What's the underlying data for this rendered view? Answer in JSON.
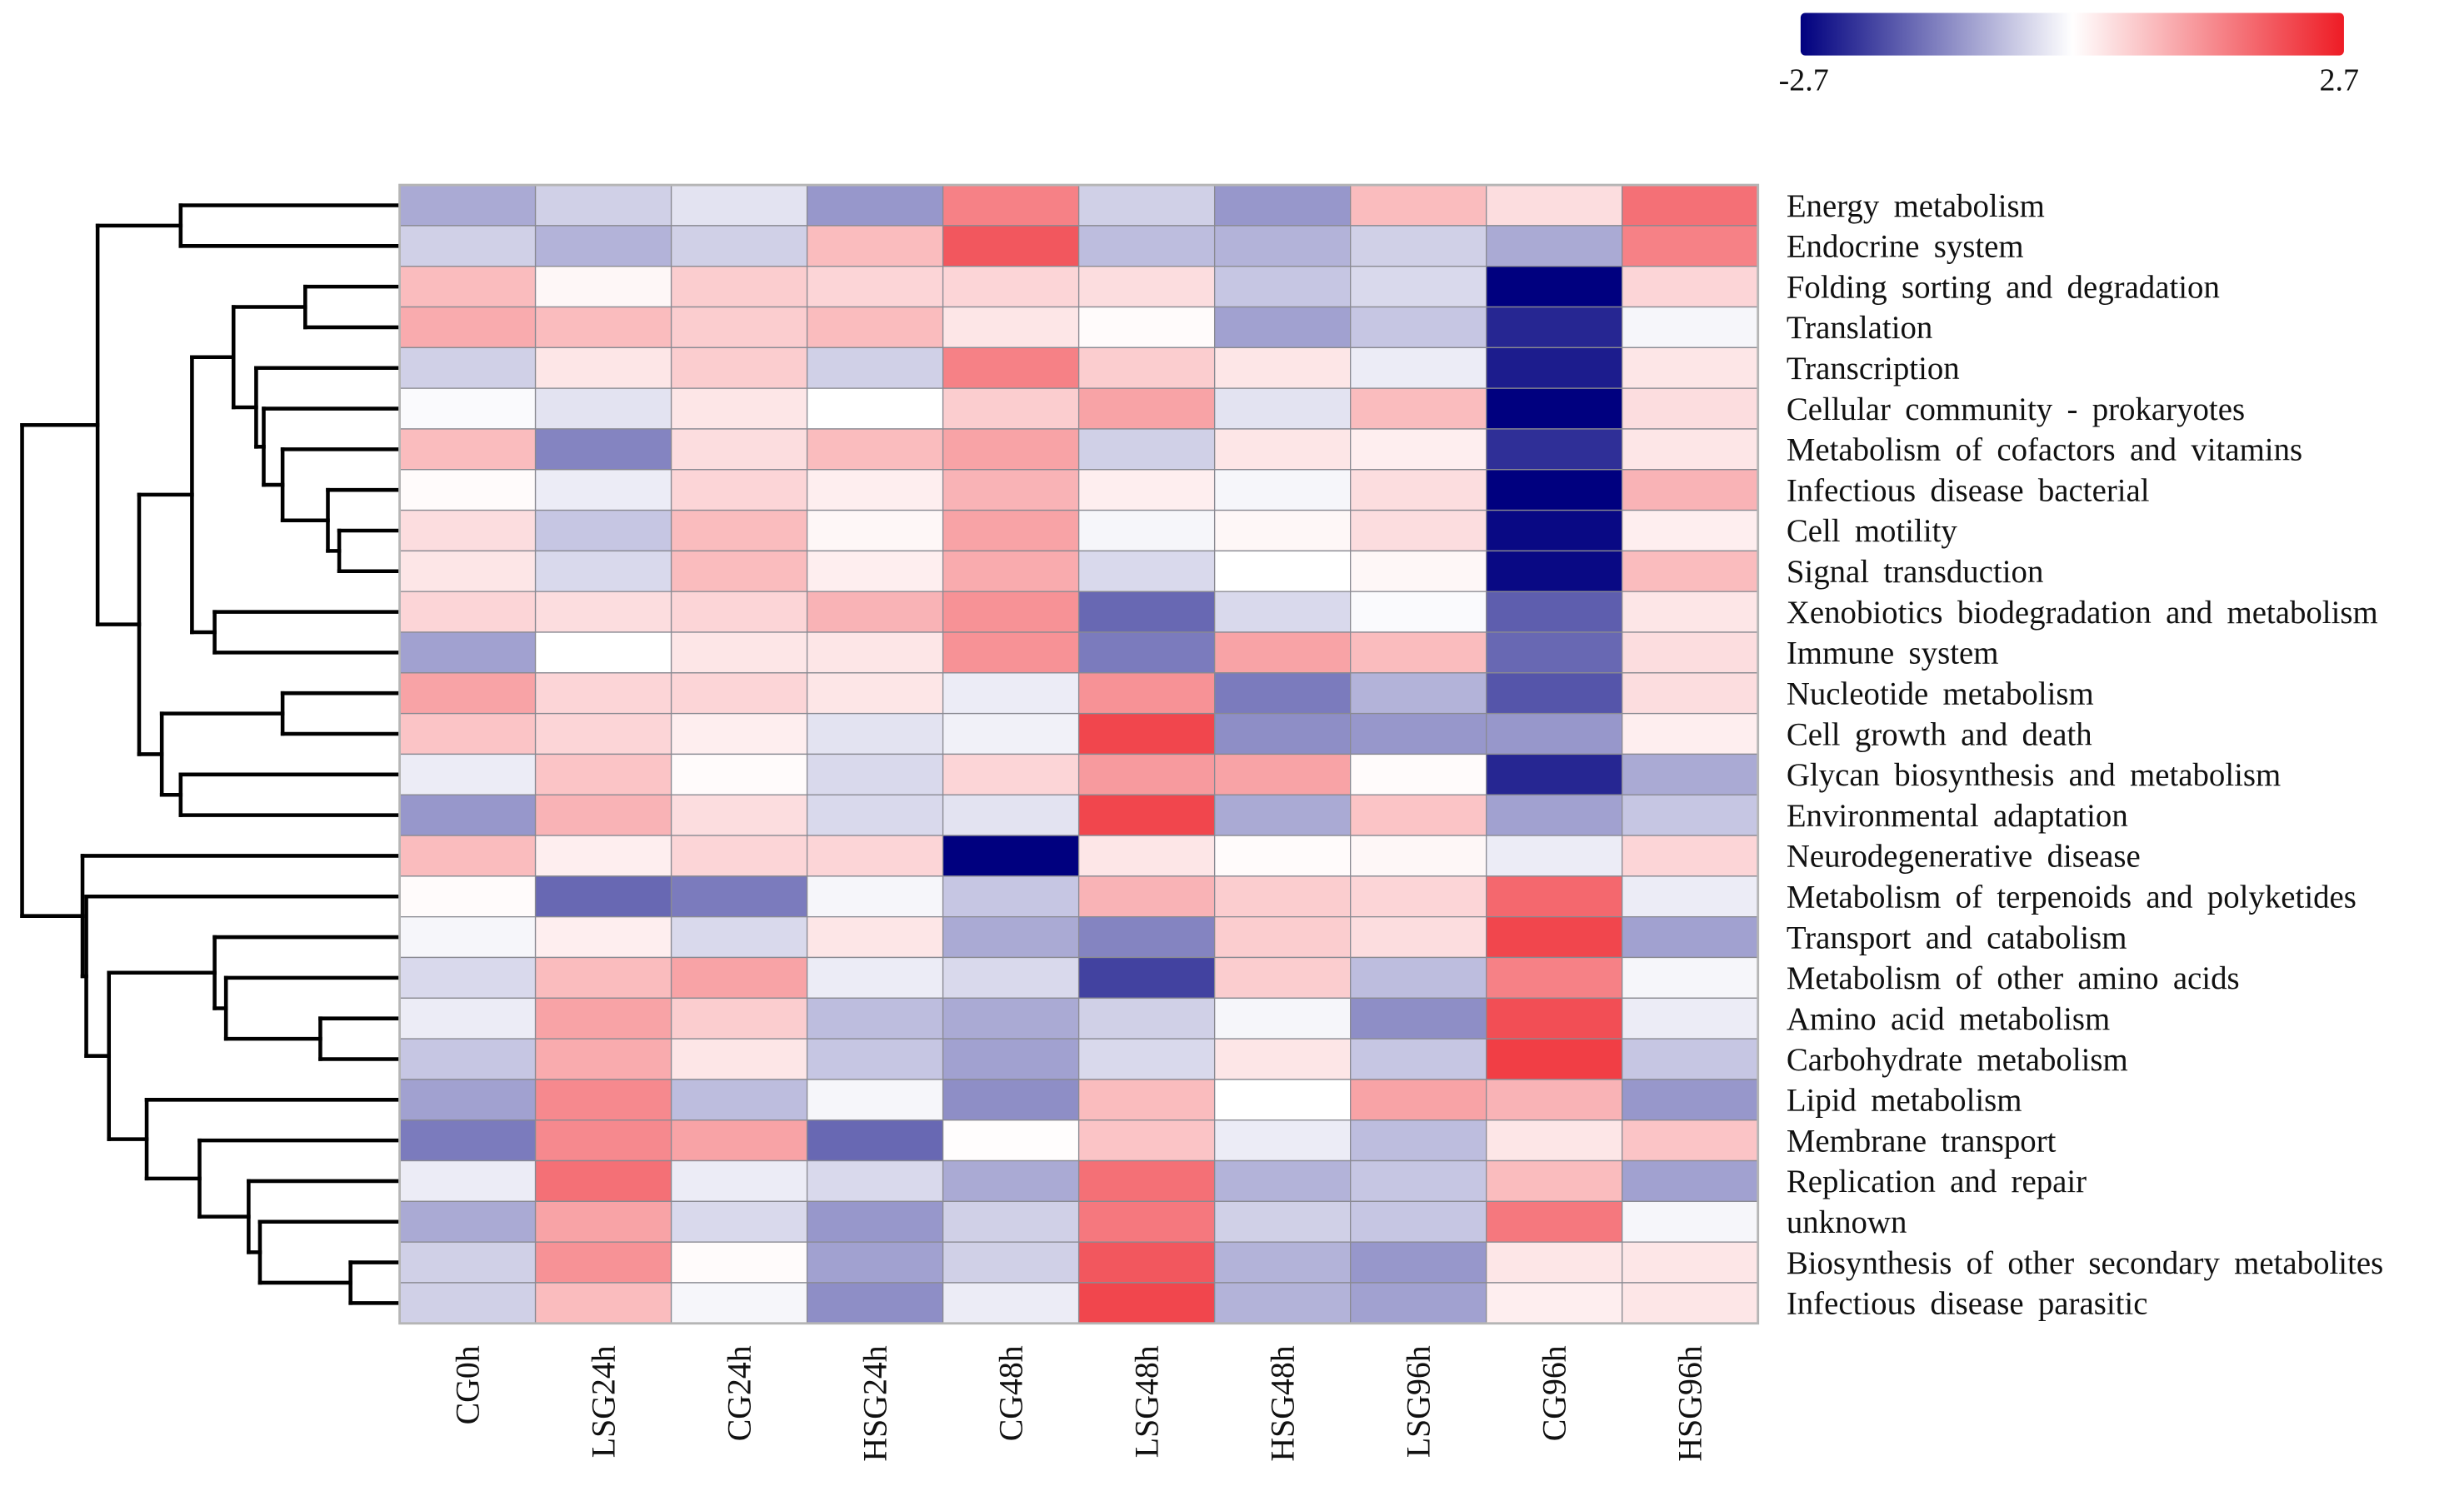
{
  "chart_data": {
    "type": "heatmap",
    "title": "",
    "columns": [
      "CG0h",
      "LSG24h",
      "CG24h",
      "HSG24h",
      "CG48h",
      "LSG48h",
      "HSG48h",
      "LSG96h",
      "CG96h",
      "HSG96h"
    ],
    "rows": [
      "Energy metabolism",
      "Endocrine system",
      "Folding sorting and degradation",
      "Translation",
      "Transcription",
      "Cellular community - prokaryotes",
      "Metabolism of cofactors and vitamins",
      "Infectious disease bacterial",
      "Cell motility",
      "Signal transduction",
      "Xenobiotics biodegradation and metabolism",
      "Immune system",
      "Nucleotide metabolism",
      "Cell growth and death",
      "Glycan biosynthesis and metabolism",
      "Environmental adaptation",
      "Neurodegenerative disease",
      "Metabolism of terpenoids and polyketides",
      "Transport and catabolism",
      "Metabolism of other amino acids",
      "Amino acid metabolism",
      "Carbohydrate metabolism",
      "Lipid metabolism",
      "Membrane transport",
      "Replication and repair",
      "unknown",
      "Biosynthesis of other secondary metabolites",
      "Infectious disease parasitic"
    ],
    "values": [
      [
        -0.9,
        -0.5,
        -0.3,
        -1.1,
        1.5,
        -0.5,
        -1.1,
        0.8,
        0.4,
        1.7
      ],
      [
        -0.5,
        -0.8,
        -0.5,
        0.8,
        2.0,
        -0.7,
        -0.8,
        -0.5,
        -0.9,
        1.5
      ],
      [
        0.8,
        0.1,
        0.6,
        0.5,
        0.5,
        0.4,
        -0.6,
        -0.4,
        -2.7,
        0.5
      ],
      [
        1.0,
        0.8,
        0.6,
        0.8,
        0.3,
        0.05,
        -1.0,
        -0.6,
        -2.3,
        -0.1
      ],
      [
        -0.5,
        0.3,
        0.6,
        -0.5,
        1.5,
        0.6,
        0.3,
        -0.2,
        -2.4,
        0.3
      ],
      [
        -0.05,
        -0.3,
        0.3,
        0.0,
        0.6,
        1.1,
        -0.3,
        0.8,
        -2.7,
        0.4
      ],
      [
        0.8,
        -1.3,
        0.4,
        0.8,
        1.1,
        -0.5,
        0.3,
        0.2,
        -2.2,
        0.3
      ],
      [
        0.05,
        -0.2,
        0.5,
        0.2,
        0.9,
        0.2,
        -0.1,
        0.4,
        -2.7,
        0.9
      ],
      [
        0.4,
        -0.6,
        0.8,
        0.1,
        1.1,
        -0.1,
        0.1,
        0.4,
        -2.6,
        0.2
      ],
      [
        0.3,
        -0.4,
        0.8,
        0.2,
        1.0,
        -0.4,
        0.0,
        0.1,
        -2.6,
        0.8
      ],
      [
        0.5,
        0.4,
        0.5,
        0.9,
        1.3,
        -1.6,
        -0.4,
        -0.05,
        -1.7,
        0.3
      ],
      [
        -1.0,
        0.0,
        0.3,
        0.3,
        1.3,
        -1.4,
        1.1,
        0.8,
        -1.6,
        0.4
      ],
      [
        1.1,
        0.5,
        0.5,
        0.3,
        -0.2,
        1.3,
        -1.4,
        -0.8,
        -1.8,
        0.4
      ],
      [
        0.7,
        0.5,
        0.2,
        -0.3,
        -0.15,
        2.2,
        -1.2,
        -1.1,
        -1.1,
        0.2
      ],
      [
        -0.2,
        0.7,
        0.05,
        -0.4,
        0.5,
        1.2,
        1.1,
        0.05,
        -2.3,
        -0.9
      ],
      [
        -1.1,
        0.9,
        0.4,
        -0.4,
        -0.3,
        2.2,
        -0.9,
        0.7,
        -1.0,
        -0.6
      ],
      [
        0.8,
        0.2,
        0.5,
        0.5,
        -2.7,
        0.3,
        0.05,
        0.1,
        -0.2,
        0.5
      ],
      [
        0.05,
        -1.6,
        -1.4,
        -0.1,
        -0.6,
        0.9,
        0.6,
        0.5,
        1.8,
        -0.2
      ],
      [
        -0.1,
        0.2,
        -0.4,
        0.3,
        -0.9,
        -1.3,
        0.6,
        0.4,
        2.2,
        -1.0
      ],
      [
        -0.4,
        0.8,
        1.1,
        -0.2,
        -0.4,
        -2.0,
        0.6,
        -0.7,
        1.5,
        -0.1
      ],
      [
        -0.2,
        1.1,
        0.6,
        -0.7,
        -0.9,
        -0.5,
        -0.1,
        -1.2,
        2.1,
        -0.2
      ],
      [
        -0.6,
        1.0,
        0.3,
        -0.6,
        -1.0,
        -0.4,
        0.3,
        -0.6,
        2.3,
        -0.6
      ],
      [
        -1.0,
        1.4,
        -0.7,
        -0.1,
        -1.2,
        0.8,
        0.0,
        1.1,
        0.9,
        -1.1
      ],
      [
        -1.4,
        1.4,
        1.1,
        -1.6,
        0.02,
        0.7,
        -0.2,
        -0.7,
        0.3,
        0.7
      ],
      [
        -0.2,
        1.7,
        -0.2,
        -0.4,
        -0.9,
        1.7,
        -0.8,
        -0.6,
        0.8,
        -1.0
      ],
      [
        -0.9,
        1.1,
        -0.4,
        -1.1,
        -0.5,
        1.6,
        -0.5,
        -0.6,
        1.6,
        -0.1
      ],
      [
        -0.5,
        1.3,
        0.05,
        -1.0,
        -0.5,
        2.0,
        -0.8,
        -1.1,
        0.3,
        0.3
      ],
      [
        -0.5,
        0.8,
        -0.1,
        -1.2,
        -0.2,
        2.2,
        -0.8,
        -1.0,
        0.2,
        0.3
      ]
    ],
    "color_scale": {
      "min": -2.7,
      "max": 2.7,
      "min_label": "-2.7",
      "max_label": "2.7",
      "low_color": "#00007f",
      "mid_color": "#ffffff",
      "high_color": "#ee1c25"
    },
    "legend_position": "top-right",
    "row_dendrogram": {
      "h": 1.0,
      "c": [
        {
          "h": 0.8,
          "c": [
            {
              "h": 0.58,
              "c": [
                0,
                1
              ]
            },
            {
              "h": 0.69,
              "c": [
                {
                  "h": 0.55,
                  "c": [
                    {
                      "h": 0.44,
                      "c": [
                        {
                          "h": 0.25,
                          "c": [
                            2,
                            3
                          ]
                        },
                        {
                          "h": 0.38,
                          "c": [
                            4,
                            {
                              "h": 0.36,
                              "c": [
                                5,
                                {
                                  "h": 0.31,
                                  "c": [
                                    6,
                                    {
                                      "h": 0.19,
                                      "c": [
                                        7,
                                        {
                                          "h": 0.16,
                                          "c": [
                                            8,
                                            9
                                          ]
                                        }
                                      ]
                                    }
                                  ]
                                }
                              ]
                            }
                          ]
                        }
                      ]
                    },
                    {
                      "h": 0.49,
                      "c": [
                        10,
                        11
                      ]
                    }
                  ]
                },
                {
                  "h": 0.63,
                  "c": [
                    {
                      "h": 0.31,
                      "c": [
                        12,
                        13
                      ]
                    },
                    {
                      "h": 0.58,
                      "c": [
                        14,
                        15
                      ]
                    }
                  ]
                }
              ]
            }
          ]
        },
        {
          "h": 0.84,
          "c": [
            16,
            {
              "h": 0.83,
              "c": [
                17,
                {
                  "h": 0.77,
                  "c": [
                    {
                      "h": 0.49,
                      "c": [
                        18,
                        {
                          "h": 0.46,
                          "c": [
                            19,
                            {
                              "h": 0.21,
                              "c": [
                                20,
                                21
                              ]
                            }
                          ]
                        }
                      ]
                    },
                    {
                      "h": 0.67,
                      "c": [
                        22,
                        {
                          "h": 0.53,
                          "c": [
                            23,
                            {
                              "h": 0.4,
                              "c": [
                                24,
                                {
                                  "h": 0.37,
                                  "c": [
                                    25,
                                    {
                                      "h": 0.13,
                                      "c": [
                                        26,
                                        27
                                      ]
                                    }
                                  ]
                                }
                              ]
                            }
                          ]
                        }
                      ]
                    }
                  ]
                }
              ]
            }
          ]
        }
      ]
    }
  }
}
